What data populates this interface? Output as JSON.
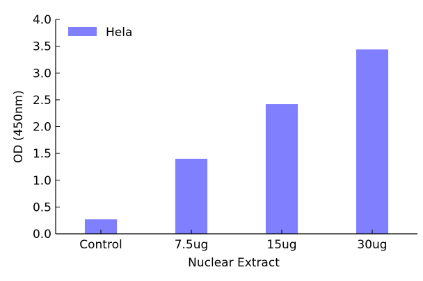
{
  "chart_data": {
    "type": "bar",
    "title": "",
    "xlabel": "Nuclear Extract",
    "ylabel": "OD (450nm)",
    "categories": [
      "Control",
      "7.5ug",
      "15ug",
      "30ug"
    ],
    "series": [
      {
        "name": "Hela",
        "values": [
          0.27,
          1.4,
          2.42,
          3.44
        ],
        "color": "#8080ff"
      }
    ],
    "ylim": [
      0.0,
      4.0
    ],
    "yticks": [
      "0.0",
      "0.5",
      "1.0",
      "1.5",
      "2.0",
      "2.5",
      "3.0",
      "3.5",
      "4.0"
    ],
    "grid": false,
    "legend_position": "top-left"
  }
}
